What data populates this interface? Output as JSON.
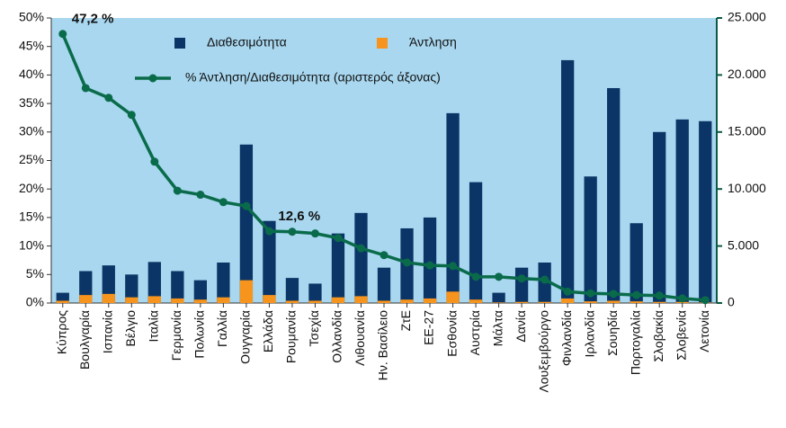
{
  "chart_data": {
    "type": "bar",
    "categories": [
      "Κύπρος",
      "Βουλγαρία",
      "Ισπανία",
      "Βέλγιο",
      "Ιταλία",
      "Γερμανία",
      "Πολωνία",
      "Γαλλία",
      "Ουγγαρία",
      "Ελλάδα",
      "Ρουμανία",
      "Τσεχία",
      "Ολλανδία",
      "Λιθουανία",
      "Ην. Βασίλειο",
      "ΖτΕ",
      "ΕΕ-27",
      "Εσθονία",
      "Αυστρία",
      "Μάλτα",
      "Δανία",
      "Λουξεμβούργο",
      "Φινλανδία",
      "Ιρλανδία",
      "Σουηδία",
      "Πορτογαλία",
      "Σλοβακία",
      "Σλοβενία",
      "Λετονία"
    ],
    "series": [
      {
        "name": "Διαθεσιμότητα",
        "type": "bar",
        "axis": "y2",
        "color": "#0b3566",
        "values": [
          900,
          2800,
          3300,
          2500,
          3600,
          2800,
          2000,
          3550,
          13900,
          7200,
          2200,
          1700,
          6100,
          7900,
          3100,
          6550,
          7500,
          16650,
          10600,
          900,
          3100,
          3550,
          21300,
          11100,
          18850,
          7000,
          15000,
          16100,
          15950
        ]
      },
      {
        "name": "Άντληση",
        "type": "bar",
        "axis": "y2",
        "color": "#f7941d",
        "values": [
          200,
          700,
          800,
          500,
          600,
          400,
          300,
          500,
          2000,
          700,
          200,
          200,
          500,
          600,
          200,
          300,
          400,
          1000,
          300,
          50,
          100,
          100,
          400,
          150,
          200,
          150,
          100,
          100,
          50
        ]
      },
      {
        "name": "% Άντληση/Διαθεσιμότητα (αριστερός άξονας)",
        "type": "line",
        "axis": "y",
        "color": "#0a6b4a",
        "values": [
          47.2,
          37.7,
          36,
          33,
          24.8,
          19.7,
          19,
          17.7,
          17,
          12.6,
          12.5,
          12.2,
          11.4,
          9.6,
          8.4,
          7.1,
          6.6,
          6.5,
          4.6,
          4.6,
          4.3,
          4.1,
          2.0,
          1.7,
          1.6,
          1.4,
          1.3,
          0.8,
          0.5
        ]
      }
    ],
    "annotations": [
      {
        "text": "47,2  %",
        "x": "Κύπρος"
      },
      {
        "text": "12,6  %",
        "x": "Ελλάδα"
      }
    ],
    "ylim": [
      0,
      50
    ],
    "yticks": [
      {
        "value": 0,
        "label": "0%"
      },
      {
        "value": 5,
        "label": "5%"
      },
      {
        "value": 10,
        "label": "10%"
      },
      {
        "value": 15,
        "label": "15%"
      },
      {
        "value": 20,
        "label": "20%"
      },
      {
        "value": 25,
        "label": "25%"
      },
      {
        "value": 30,
        "label": "30%"
      },
      {
        "value": 35,
        "label": "35%"
      },
      {
        "value": 40,
        "label": "40%"
      },
      {
        "value": 45,
        "label": "45%"
      },
      {
        "value": 50,
        "label": "50%"
      }
    ],
    "y2lim": [
      0,
      25000
    ],
    "y2ticks": [
      0,
      {
        "value": 5000,
        "label": "5.000"
      },
      {
        "value": 10000,
        "label": "10.000"
      },
      {
        "value": 15000,
        "label": "15.000"
      },
      {
        "value": 20000,
        "label": "20.000"
      },
      {
        "value": 25000,
        "label": "25.000"
      }
    ],
    "grid": false,
    "plot_background": "#a8d7ef"
  }
}
